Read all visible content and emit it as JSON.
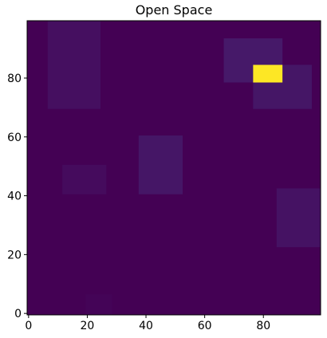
{
  "chart_data": {
    "type": "heatmap",
    "title": "Open Space",
    "xlabel": "",
    "ylabel": "",
    "xlim": [
      -0.5,
      99.5
    ],
    "ylim": [
      -0.5,
      99.5
    ],
    "origin": "lower",
    "colormap": "viridis",
    "value_range": [
      0,
      1
    ],
    "background_value": 0,
    "cells": [
      {
        "x": [
          7,
          24
        ],
        "y": [
          70,
          99
        ],
        "value": 0.04
      },
      {
        "x": [
          67,
          86
        ],
        "y": [
          79,
          93
        ],
        "value": 0.07
      },
      {
        "x": [
          77,
          96
        ],
        "y": [
          70,
          84
        ],
        "value": 0.06
      },
      {
        "x": [
          77,
          86
        ],
        "y": [
          79,
          84
        ],
        "value": 1.0
      },
      {
        "x": [
          38,
          52
        ],
        "y": [
          41,
          60
        ],
        "value": 0.06
      },
      {
        "x": [
          12,
          26
        ],
        "y": [
          41,
          50
        ],
        "value": 0.03
      },
      {
        "x": [
          85,
          99
        ],
        "y": [
          23,
          42
        ],
        "value": 0.05
      },
      {
        "x": [
          20,
          28
        ],
        "y": [
          0,
          6
        ],
        "value": 0.01
      }
    ],
    "xticks": [
      0,
      20,
      40,
      60,
      80
    ],
    "yticks": [
      0,
      20,
      40,
      60,
      80
    ],
    "colors": {
      "axes_edge": "#000000"
    }
  }
}
